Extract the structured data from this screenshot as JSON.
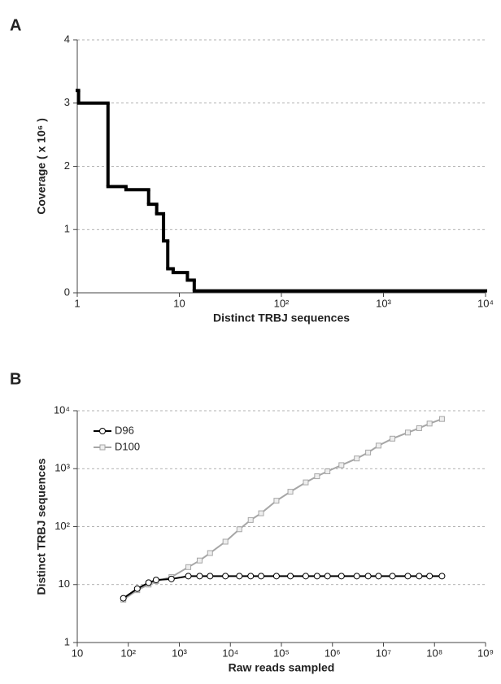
{
  "chart_data": [
    {
      "type": "step",
      "panel": "A",
      "x_label": "Distinct TRBJ sequences",
      "y_label": "Coverage ( x 10⁶ )",
      "xscale": "log",
      "xlim": [
        1,
        10000
      ],
      "ylim": [
        0,
        4
      ],
      "xticks": [
        1,
        10,
        {
          "value": 100,
          "label": "10²"
        },
        {
          "value": 1000,
          "label": "10³"
        },
        {
          "value": 10000,
          "label": "10⁴"
        }
      ],
      "yticks": [
        0,
        1,
        2,
        3,
        4
      ],
      "grid": true,
      "series": [
        {
          "color": "#000000",
          "x": [
            1,
            1.03,
            2,
            3,
            5,
            6,
            7,
            7.7,
            8.7,
            12,
            14
          ],
          "values": [
            3.2,
            3.0,
            1.68,
            1.63,
            1.4,
            1.25,
            0.82,
            0.38,
            0.32,
            0.2,
            0.03
          ]
        }
      ]
    },
    {
      "type": "line",
      "panel": "B",
      "x_label": "Raw reads sampled",
      "y_label": "Distinct TRBJ sequences",
      "xscale": "log",
      "yscale": "log",
      "xlim": [
        10,
        1000000000
      ],
      "ylim": [
        1,
        10000
      ],
      "xticks": [
        10,
        {
          "value": 100,
          "label": "10²"
        },
        {
          "value": 1000,
          "label": "10³"
        },
        {
          "value": 10000,
          "label": "10⁴"
        },
        {
          "value": 100000,
          "label": "10⁵"
        },
        {
          "value": 1000000,
          "label": "10⁶"
        },
        {
          "value": 10000000,
          "label": "10⁷"
        },
        {
          "value": 100000000,
          "label": "10⁸"
        },
        {
          "value": 1000000000,
          "label": "10⁹"
        }
      ],
      "yticks": [
        1,
        10,
        {
          "value": 100,
          "label": "10²"
        },
        {
          "value": 1000,
          "label": "10³"
        },
        {
          "value": 10000,
          "label": "10⁴"
        }
      ],
      "grid": true,
      "legend": "upper-left",
      "x": [
        80,
        150,
        250,
        350,
        700,
        1500,
        2500,
        4000,
        8000,
        15000,
        25000,
        40000,
        80000,
        150000,
        300000,
        500000,
        800000,
        1500000,
        3000000,
        5000000,
        8000000,
        15000000,
        30000000,
        50000000,
        80000000,
        140000000
      ],
      "series": [
        {
          "name": "D96",
          "color": "#000000",
          "marker": "circle",
          "values": [
            5.8,
            8.5,
            10.8,
            12,
            12.5,
            14,
            14,
            14,
            14,
            14,
            14,
            14,
            14,
            14,
            14,
            14,
            14,
            14,
            14,
            14,
            14,
            14,
            14,
            14,
            14,
            14
          ]
        },
        {
          "name": "D100",
          "color": "#a6a6a6",
          "marker": "square",
          "values": [
            5.5,
            8,
            10,
            11.5,
            13.5,
            20,
            26,
            35,
            55,
            90,
            130,
            170,
            280,
            400,
            580,
            740,
            900,
            1150,
            1500,
            1900,
            2500,
            3300,
            4200,
            5000,
            6000,
            7200
          ]
        }
      ]
    }
  ]
}
